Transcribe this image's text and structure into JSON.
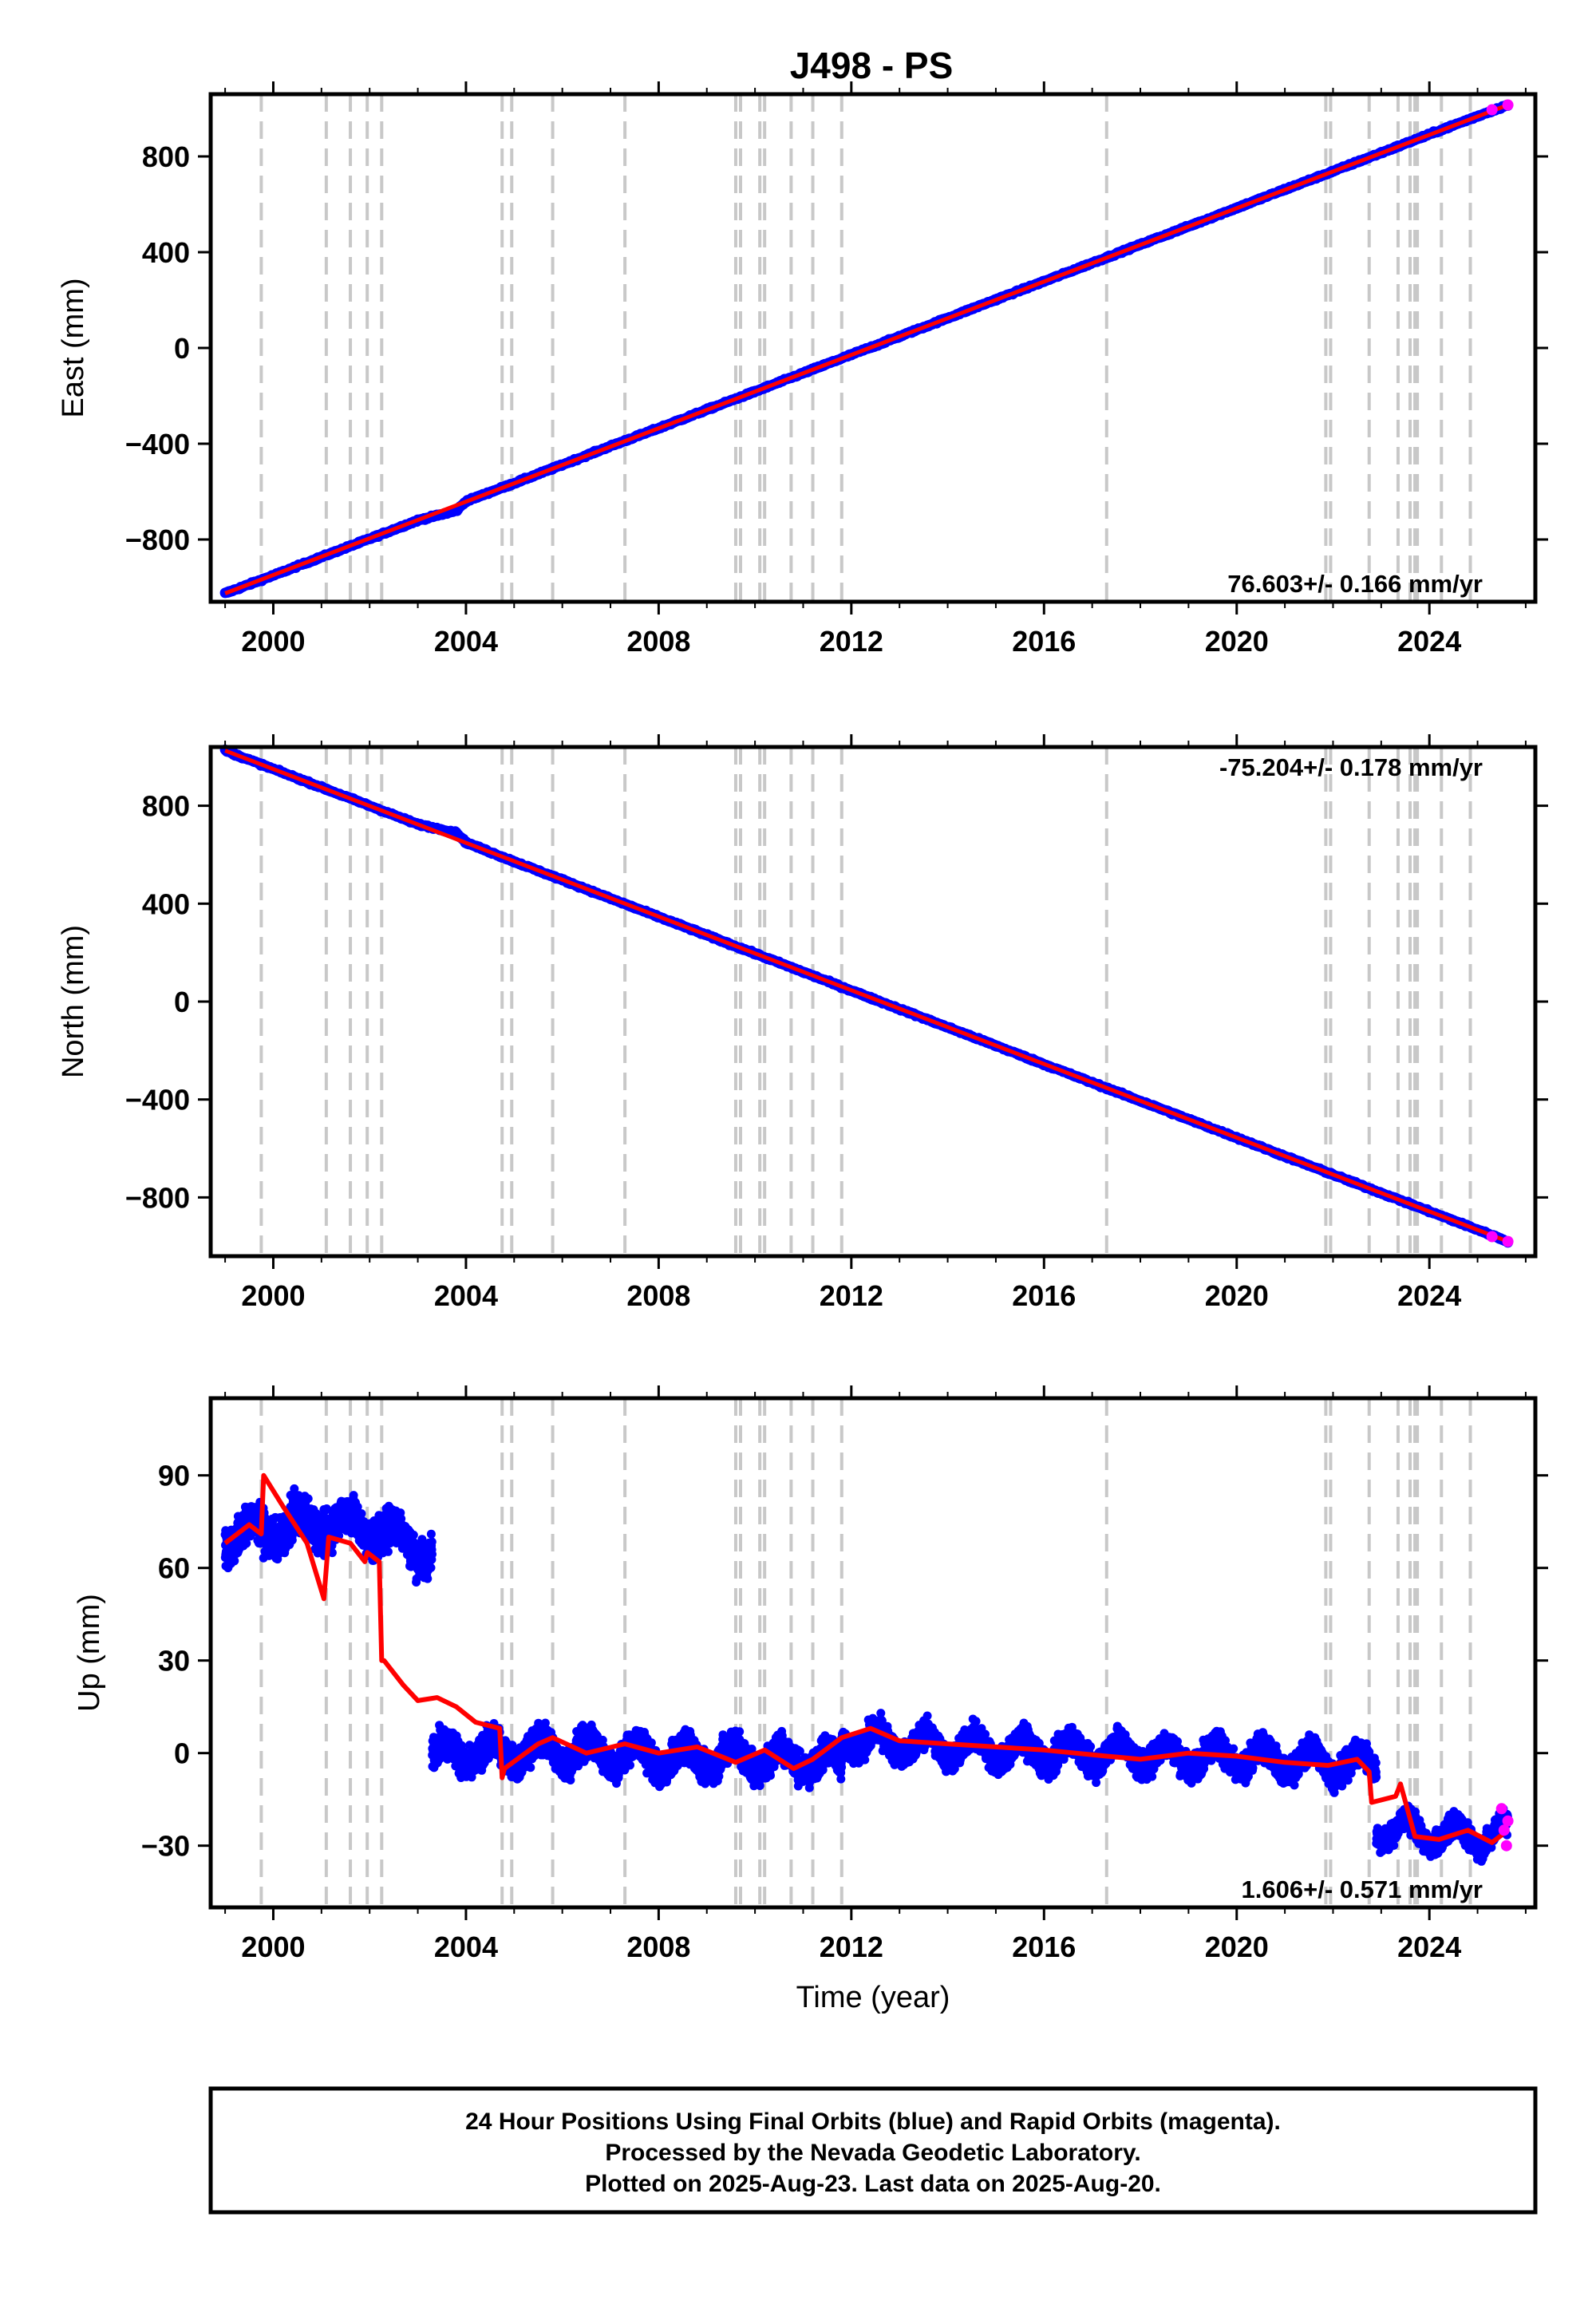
{
  "chart_data": [
    {
      "type": "scatter",
      "panel": "east",
      "title": "J498 - PS",
      "ylabel": "East (mm)",
      "xlabel": "",
      "xlim": [
        1998.7,
        2026.2
      ],
      "ylim": [
        -1060,
        1060
      ],
      "x_ticks": [
        2000,
        2004,
        2008,
        2012,
        2016,
        2020,
        2024
      ],
      "x_tick_labels": [
        "2000",
        "2004",
        "2008",
        "2012",
        "2016",
        "2020",
        "2024"
      ],
      "y_ticks": [
        -800,
        -400,
        0,
        400,
        800
      ],
      "y_tick_labels": [
        "−800",
        "−400",
        "0",
        "400",
        "800"
      ],
      "rate_label": "76.603+/- 0.166 mm/yr",
      "grid": false,
      "step_lines": [
        1999.75,
        2001.1,
        2001.6,
        2001.95,
        2002.25,
        2004.75,
        2004.95,
        2005.8,
        2007.3,
        2009.6,
        2009.7,
        2010.1,
        2010.2,
        2010.75,
        2011.2,
        2011.8,
        2017.3,
        2021.85,
        2021.95,
        2022.75,
        2023.35,
        2023.6,
        2023.7,
        2023.75,
        2024.25,
        2024.85
      ],
      "series": [
        {
          "name": "Final Orbits",
          "color": "#0000ff",
          "x": [
            1999.0,
            2000.0,
            2001.0,
            2002.0,
            2003.0,
            2003.8,
            2004.0,
            2005.0,
            2006.0,
            2007.0,
            2008.0,
            2009.0,
            2010.0,
            2011.0,
            2012.0,
            2013.0,
            2014.0,
            2015.0,
            2016.0,
            2017.0,
            2018.0,
            2019.0,
            2020.0,
            2021.0,
            2022.0,
            2023.0,
            2024.0,
            2025.0,
            2025.63
          ],
          "y": [
            -1025,
            -950,
            -873,
            -797,
            -720,
            -680,
            -640,
            -565,
            -488,
            -410,
            -335,
            -258,
            -182,
            -105,
            -28,
            48,
            125,
            202,
            278,
            355,
            432,
            508,
            585,
            662,
            738,
            815,
            892,
            968,
            1015
          ]
        },
        {
          "name": "Rapid Orbits",
          "color": "#ff00ff",
          "x": [
            2025.3,
            2025.63
          ],
          "y": [
            995,
            1015
          ]
        }
      ],
      "model": {
        "color": "#ff0000",
        "x": [
          1999.0,
          2025.63
        ],
        "y": [
          -1025,
          1015
        ]
      }
    },
    {
      "type": "scatter",
      "panel": "north",
      "title": "",
      "ylabel": "North (mm)",
      "xlabel": "",
      "xlim": [
        1998.7,
        2026.2
      ],
      "ylim": [
        -1040,
        1040
      ],
      "x_ticks": [
        2000,
        2004,
        2008,
        2012,
        2016,
        2020,
        2024
      ],
      "x_tick_labels": [
        "2000",
        "2004",
        "2008",
        "2012",
        "2016",
        "2020",
        "2024"
      ],
      "y_ticks": [
        -800,
        -400,
        0,
        400,
        800
      ],
      "y_tick_labels": [
        "−800",
        "−400",
        "0",
        "400",
        "800"
      ],
      "rate_label": "-75.204+/- 0.178 mm/yr",
      "grid": false,
      "step_lines": [
        1999.75,
        2001.1,
        2001.6,
        2001.95,
        2002.25,
        2004.75,
        2004.95,
        2005.8,
        2007.3,
        2009.6,
        2009.7,
        2010.1,
        2010.2,
        2010.75,
        2011.2,
        2011.8,
        2017.3,
        2021.85,
        2021.95,
        2022.75,
        2023.35,
        2023.6,
        2023.7,
        2023.75,
        2024.25,
        2024.85
      ],
      "series": [
        {
          "name": "Final Orbits",
          "color": "#0000ff",
          "x": [
            1999.0,
            2000.0,
            2001.0,
            2002.0,
            2003.0,
            2003.8,
            2004.0,
            2005.0,
            2006.0,
            2007.0,
            2008.0,
            2009.0,
            2010.0,
            2011.0,
            2012.0,
            2013.0,
            2014.0,
            2015.0,
            2016.0,
            2017.0,
            2018.0,
            2019.0,
            2020.0,
            2021.0,
            2022.0,
            2023.0,
            2024.0,
            2025.0,
            2025.63
          ],
          "y": [
            1025,
            950,
            875,
            800,
            724,
            690,
            650,
            572,
            497,
            421,
            346,
            271,
            196,
            121,
            45,
            -30,
            -105,
            -180,
            -256,
            -331,
            -406,
            -481,
            -556,
            -632,
            -707,
            -782,
            -857,
            -932,
            -980
          ]
        },
        {
          "name": "Rapid Orbits",
          "color": "#ff00ff",
          "x": [
            2025.3,
            2025.63
          ],
          "y": [
            -960,
            -980
          ]
        }
      ],
      "model": {
        "color": "#ff0000",
        "x": [
          1999.0,
          2025.63
        ],
        "y": [
          1025,
          -980
        ]
      }
    },
    {
      "type": "scatter",
      "panel": "up",
      "title": "",
      "ylabel": "Up (mm)",
      "xlabel": "Time (year)",
      "xlim": [
        1998.7,
        2026.2
      ],
      "ylim": [
        -50,
        115
      ],
      "x_ticks": [
        2000,
        2004,
        2008,
        2012,
        2016,
        2020,
        2024
      ],
      "x_tick_labels": [
        "2000",
        "2004",
        "2008",
        "2012",
        "2016",
        "2020",
        "2024"
      ],
      "y_ticks": [
        -30,
        0,
        30,
        60,
        90
      ],
      "y_tick_labels": [
        "−30",
        "0",
        "30",
        "60",
        "90"
      ],
      "rate_label": "1.606+/- 0.571 mm/yr",
      "grid": false,
      "step_lines": [
        1999.75,
        2001.1,
        2001.6,
        2001.95,
        2002.25,
        2004.75,
        2004.95,
        2005.8,
        2007.3,
        2009.6,
        2009.7,
        2010.1,
        2010.2,
        2010.75,
        2011.2,
        2011.8,
        2017.3,
        2021.85,
        2021.95,
        2022.75,
        2023.35,
        2023.6,
        2023.7,
        2023.75,
        2024.25,
        2024.85
      ],
      "series": [
        {
          "name": "Final Orbits",
          "color": "#0000ff",
          "segments": [
            {
              "x0": 1999.0,
              "x1": 2003.3,
              "mean": [
                70,
                73,
                75,
                72,
                65
              ],
              "spread": 10
            },
            {
              "x0": 2003.3,
              "x1": 2011.8,
              "mean": [
                0,
                0,
                1,
                0,
                -2,
                -1,
                -2,
                -3
              ],
              "spread": 8
            },
            {
              "x0": 2011.8,
              "x1": 2022.9,
              "mean": [
                4,
                3,
                2,
                1,
                0,
                0,
                -1,
                -1,
                -2,
                -3,
                -4
              ],
              "spread": 7
            },
            {
              "x0": 2022.9,
              "x1": 2025.63,
              "mean": [
                -24,
                -26,
                -27,
                -26
              ],
              "spread": 6
            }
          ]
        },
        {
          "name": "Rapid Orbits",
          "color": "#ff00ff",
          "x": [
            2025.5,
            2025.55,
            2025.6,
            2025.63
          ],
          "y": [
            -18,
            -25,
            -30,
            -22
          ]
        }
      ],
      "model": {
        "color": "#ff0000",
        "x": [
          1999.0,
          1999.5,
          1999.75,
          1999.8,
          2000.2,
          2000.7,
          2001.05,
          2001.15,
          2001.6,
          2001.9,
          2001.95,
          2002.2,
          2002.25,
          2002.3,
          2002.7,
          2003.0,
          2003.4,
          2003.8,
          2004.2,
          2004.7,
          2004.75,
          2004.8,
          2005.5,
          2005.8,
          2006.5,
          2007.3,
          2008.0,
          2008.8,
          2009.6,
          2010.2,
          2010.8,
          2011.2,
          2011.8,
          2012.4,
          2013.0,
          2014.0,
          2015.0,
          2016.0,
          2017.3,
          2018.0,
          2019.0,
          2020.0,
          2021.0,
          2021.9,
          2022.5,
          2022.75,
          2022.8,
          2023.3,
          2023.4,
          2023.7,
          2024.2,
          2024.8,
          2025.3,
          2025.63
        ],
        "y": [
          68,
          74,
          71,
          90,
          80,
          68,
          50,
          70,
          68,
          62,
          65,
          62,
          30,
          30,
          22,
          17,
          18,
          15,
          10,
          8,
          -8,
          -5,
          3,
          5,
          0,
          3,
          0,
          2,
          -3,
          1,
          -5,
          -2,
          5,
          8,
          4,
          3,
          2,
          1,
          -1,
          -2,
          0,
          -1,
          -3,
          -4,
          -2,
          -6,
          -16,
          -14,
          -10,
          -27,
          -28,
          -25,
          -29,
          -25
        ]
      }
    }
  ],
  "footer": {
    "line1": "24 Hour Positions Using Final Orbits (blue) and Rapid Orbits (magenta).",
    "line2": "Processed by the Nevada Geodetic Laboratory.",
    "line3": "Plotted on 2025-Aug-23. Last data on 2025-Aug-20."
  }
}
